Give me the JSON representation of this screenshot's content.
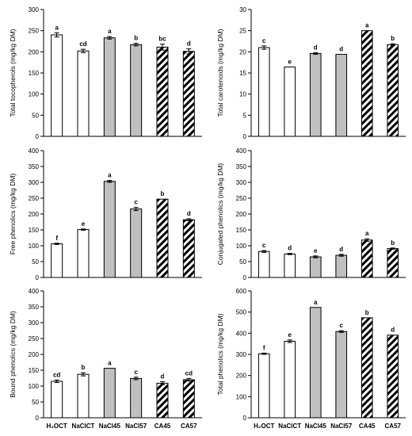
{
  "figure": {
    "x_categories": [
      "H₂OCT",
      "NaClCT",
      "NaCl45",
      "NaCl57",
      "CA45",
      "CA57"
    ],
    "fill_styles": [
      "white",
      "white",
      "gray",
      "gray",
      "hatch",
      "hatch"
    ],
    "colors": {
      "gray": "#c0c0c0",
      "white": "#ffffff",
      "hatch": "#000000",
      "axis": "#000000"
    }
  },
  "chart_data": [
    {
      "type": "bar",
      "ylabel": "Total tocopherols  (mg/kg DM)",
      "ylim": [
        0,
        300
      ],
      "yticks": [
        0,
        50,
        100,
        150,
        200,
        250,
        300
      ],
      "categories": [
        "H₂OCT",
        "NaClCT",
        "NaCl45",
        "NaCl57",
        "CA45",
        "CA57"
      ],
      "values": [
        240,
        202,
        233,
        217,
        211,
        201
      ],
      "errors": [
        5,
        4,
        3,
        3,
        7,
        6
      ],
      "letters": [
        "a",
        "cd",
        "a",
        "b",
        "bc",
        "d"
      ]
    },
    {
      "type": "bar",
      "ylabel": "Total carotenoids (mg/kg DM)",
      "ylim": [
        0,
        30
      ],
      "yticks": [
        0,
        5,
        10,
        15,
        20,
        25,
        30
      ],
      "categories": [
        "H₂OCT",
        "NaClCT",
        "NaCl45",
        "NaCl57",
        "CA45",
        "CA57"
      ],
      "values": [
        21,
        16.4,
        19.6,
        19.4,
        25,
        21.7
      ],
      "errors": [
        0.4,
        0,
        0.2,
        0,
        0,
        0.2
      ],
      "letters": [
        "c",
        "e",
        "d",
        "d",
        "a",
        "b"
      ]
    },
    {
      "type": "bar",
      "ylabel": "Free phenolics  (mg/kg DM)",
      "ylim": [
        0,
        400
      ],
      "yticks": [
        0,
        50,
        100,
        150,
        200,
        250,
        300,
        350,
        400
      ],
      "categories": [
        "H₂OCT",
        "NaClCT",
        "NaCl45",
        "NaCl57",
        "CA45",
        "CA57"
      ],
      "values": [
        106,
        151,
        303,
        216,
        247,
        182
      ],
      "errors": [
        2,
        2,
        3,
        5,
        0,
        3
      ],
      "letters": [
        "f",
        "e",
        "a",
        "c",
        "b",
        "d"
      ]
    },
    {
      "type": "bar",
      "ylabel": "Conjugated phenolics (mg/kg DM)",
      "ylim": [
        0,
        400
      ],
      "yticks": [
        0,
        50,
        100,
        150,
        200,
        250,
        300,
        350,
        400
      ],
      "categories": [
        "H₂OCT",
        "NaClCT",
        "NaCl45",
        "NaCl57",
        "CA45",
        "CA57"
      ],
      "values": [
        82,
        74,
        65,
        70,
        118,
        91
      ],
      "errors": [
        3,
        2,
        3,
        3,
        4,
        2
      ],
      "letters": [
        "c",
        "d",
        "e",
        "d",
        "a",
        "b"
      ]
    },
    {
      "type": "bar",
      "ylabel": "Bound phenolics  (mg/kg DM)",
      "ylim": [
        0,
        400
      ],
      "yticks": [
        0,
        50,
        100,
        150,
        200,
        250,
        300,
        350,
        400
      ],
      "categories": [
        "H₂OCT",
        "NaClCT",
        "NaCl45",
        "NaCl57",
        "CA45",
        "CA57"
      ],
      "values": [
        115,
        137,
        156,
        124,
        109,
        120
      ],
      "errors": [
        4,
        5,
        0,
        4,
        5,
        4
      ],
      "letters": [
        "cd",
        "b",
        "a",
        "c",
        "d",
        "cd"
      ]
    },
    {
      "type": "bar",
      "ylabel": "Total phenolics (mg/kg DM)",
      "ylim": [
        0,
        600
      ],
      "yticks": [
        0,
        100,
        200,
        300,
        400,
        500,
        600
      ],
      "categories": [
        "H₂OCT",
        "NaClCT",
        "NaCl45",
        "NaCl57",
        "CA45",
        "CA57"
      ],
      "values": [
        303,
        362,
        522,
        408,
        473,
        391
      ],
      "errors": [
        3,
        6,
        0,
        4,
        0,
        0
      ],
      "letters": [
        "f",
        "e",
        "a",
        "c",
        "b",
        "d"
      ]
    }
  ]
}
